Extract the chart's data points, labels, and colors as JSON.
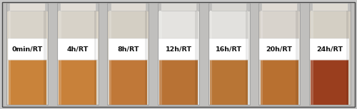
{
  "figure_width": 5.0,
  "figure_height": 1.53,
  "dpi": 100,
  "outer_bg": "#c8c8c8",
  "photo_bg": "#c0bfbd",
  "border_color": "#444444",
  "jars": [
    {
      "label": "0min/RT",
      "liquid_color": "#c9833a",
      "glass_color": "#dbd5c8",
      "glass_upper": "#d8d3c9",
      "lid_color": "#e2ddd6"
    },
    {
      "label": "4h/RT",
      "liquid_color": "#c8813a",
      "glass_color": "#dad4c7",
      "glass_upper": "#d7d2c8",
      "lid_color": "#e2ddd6"
    },
    {
      "label": "8h/RT",
      "liquid_color": "#c07838",
      "glass_color": "#d6d0c4",
      "glass_upper": "#d4cfc4",
      "lid_color": "#e0dbd4"
    },
    {
      "label": "12h/RT",
      "liquid_color": "#b87234",
      "glass_color": "#e0dfdc",
      "glass_upper": "#e4e3e0",
      "lid_color": "#dcdad6"
    },
    {
      "label": "16h/RT",
      "liquid_color": "#b87535",
      "glass_color": "#dddcd8",
      "glass_upper": "#e2e1de",
      "lid_color": "#d8d6d2"
    },
    {
      "label": "20h/RT",
      "liquid_color": "#b87030",
      "glass_color": "#d5d0c8",
      "glass_upper": "#d8d3cc",
      "lid_color": "#e0dbd4"
    },
    {
      "label": "24h/RT",
      "liquid_color": "#9a3e1e",
      "glass_color": "#d2ccc0",
      "glass_upper": "#d4cfc4",
      "lid_color": "#dedad2"
    }
  ],
  "label_fontsize": 6.8,
  "label_color": "#111111",
  "label_bg": "#ffffff"
}
